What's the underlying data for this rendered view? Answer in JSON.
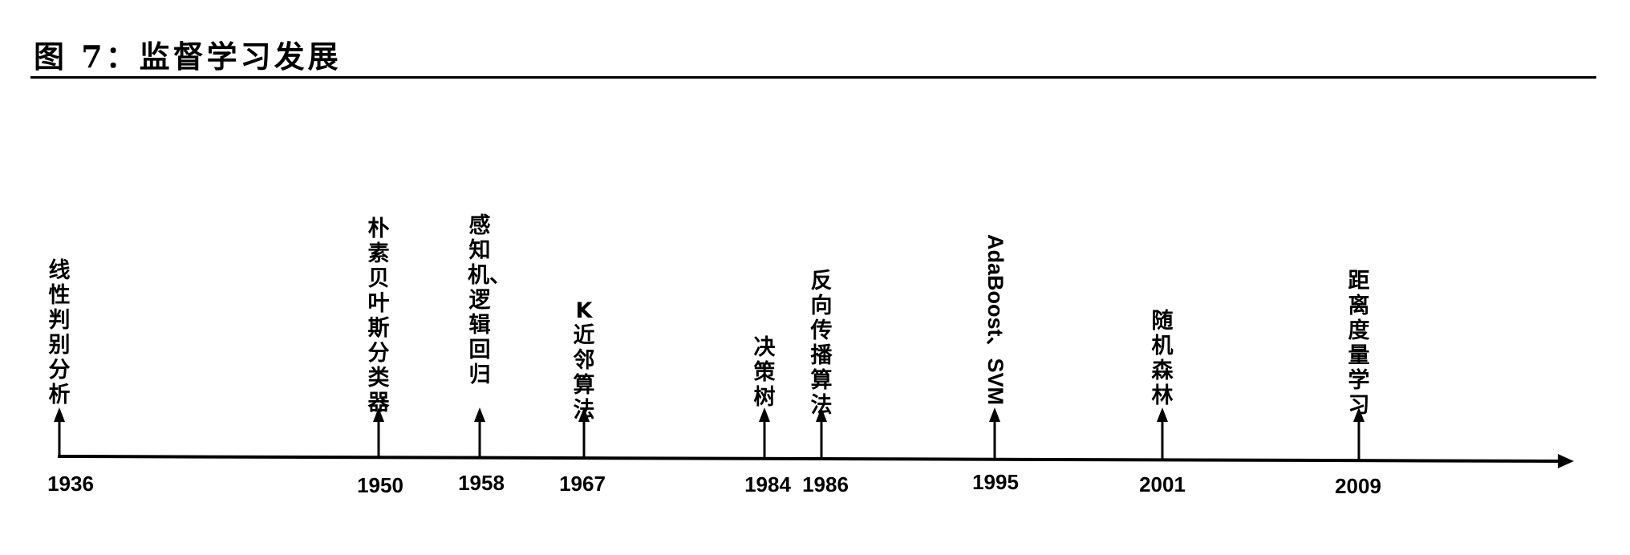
{
  "title": "图 7：监督学习发展",
  "timeline": {
    "events": [
      {
        "year": "1936",
        "label": "线性判别分析"
      },
      {
        "year": "1950",
        "label": "朴素贝叶斯分类器"
      },
      {
        "year": "1958",
        "label": "感知机、逻辑回归"
      },
      {
        "year": "1967",
        "label": "K近邻算法"
      },
      {
        "year": "1984",
        "label": "决策树"
      },
      {
        "year": "1986",
        "label": "反向传播算法"
      },
      {
        "year": "1995",
        "label": "AdaBoost、SVM"
      },
      {
        "year": "2001",
        "label": "随机森林"
      },
      {
        "year": "2009",
        "label": "距离度量学习"
      }
    ]
  }
}
